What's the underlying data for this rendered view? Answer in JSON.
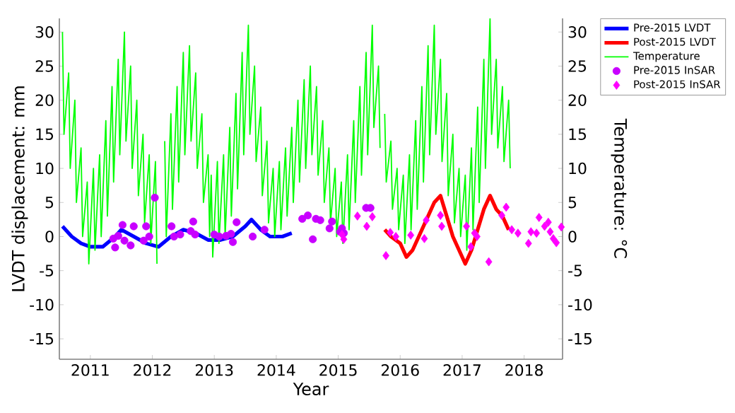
{
  "chart_data": {
    "type": "line",
    "xlabel": "Year",
    "ylabel": "LVDT displacement: mm",
    "y2label": "Temperature: °C",
    "xlim": [
      2010.5,
      2018.62
    ],
    "xticks": [
      2011,
      2012,
      2013,
      2014,
      2015,
      2016,
      2017,
      2018
    ],
    "ylim": [
      -18,
      32
    ],
    "yticks": [
      -15,
      -10,
      -5,
      0,
      5,
      10,
      15,
      20,
      25,
      30
    ],
    "y2lim": [
      -18,
      32
    ],
    "y2ticks": [
      -15,
      -10,
      -5,
      0,
      5,
      10,
      15,
      20,
      25,
      30
    ],
    "legend": "top right",
    "series": [
      {
        "name": "Pre-2015 LVDT",
        "marker": "none",
        "color": "#0000ff",
        "x": [
          2010.55,
          2010.7,
          2010.85,
          2011.0,
          2011.2,
          2011.4,
          2011.5,
          2011.7,
          2011.9,
          2012.1,
          2012.3,
          2012.5,
          2012.7,
          2012.9,
          2013.1,
          2013.3,
          2013.5,
          2013.6,
          2013.75,
          2013.9,
          2014.1,
          2014.25
        ],
        "values": [
          1.5,
          0,
          -1,
          -1.5,
          -1.5,
          0,
          1,
          0,
          -1,
          -1.5,
          0,
          1,
          0.5,
          -0.5,
          -0.5,
          0,
          1.5,
          2.5,
          1,
          0,
          0,
          0.5
        ]
      },
      {
        "name": "Post-2015 LVDT",
        "marker": "none",
        "color": "#ff0000",
        "x": [
          2015.75,
          2015.85,
          2016.0,
          2016.1,
          2016.2,
          2016.3,
          2016.45,
          2016.55,
          2016.65,
          2016.75,
          2016.85,
          2016.95,
          2017.05,
          2017.15,
          2017.25,
          2017.35,
          2017.45,
          2017.55,
          2017.65,
          2017.75
        ],
        "values": [
          1,
          0,
          -1,
          -3,
          -2,
          0,
          3,
          5,
          6,
          3,
          0,
          -2,
          -4,
          -2,
          1,
          4,
          6,
          4,
          3,
          1
        ]
      },
      {
        "name": "Temperature",
        "marker": "none",
        "axis": "y2",
        "color": "#00ff00",
        "x": [
          2010.55,
          2010.575,
          2010.65,
          2010.675,
          2010.75,
          2010.775,
          2010.85,
          2010.875,
          2010.95,
          2010.975,
          2011.05,
          2011.075,
          2011.15,
          2011.175,
          2011.25,
          2011.275,
          2011.35,
          2011.375,
          2011.45,
          2011.475,
          2011.55,
          2011.575,
          2011.65,
          2011.675,
          2011.75,
          2011.775,
          2011.85,
          2011.875,
          2011.95,
          2011.975,
          2012.05,
          2012.075,
          2012.12,
          2012.2,
          2012.225,
          2012.3,
          2012.325,
          2012.4,
          2012.425,
          2012.5,
          2012.525,
          2012.6,
          2012.625,
          2012.7,
          2012.725,
          2012.8,
          2012.825,
          2012.9,
          2012.925,
          2012.95,
          2012.975,
          2013.05,
          2013.075,
          2013.15,
          2013.175,
          2013.25,
          2013.275,
          2013.35,
          2013.375,
          2013.45,
          2013.475,
          2013.55,
          2013.575,
          2013.65,
          2013.675,
          2013.75,
          2013.775,
          2013.85,
          2013.875,
          2013.95,
          2013.975,
          2014.05,
          2014.075,
          2014.15,
          2014.175,
          2014.25,
          2014.275,
          2014.35,
          2014.375,
          2014.45,
          2014.475,
          2014.55,
          2014.575,
          2014.65,
          2014.675,
          2014.75,
          2014.775,
          2014.85,
          2014.875,
          2014.95,
          2014.975,
          2015.05,
          2015.075,
          2015.15,
          2015.175,
          2015.25,
          2015.275,
          2015.35,
          2015.375,
          2015.45,
          2015.475,
          2015.55,
          2015.575,
          2015.65,
          2015.675,
          2015.7,
          2015.75,
          2015.775,
          2015.85,
          2015.875,
          2015.95,
          2015.975,
          2016.05,
          2016.075,
          2016.15,
          2016.175,
          2016.25,
          2016.275,
          2016.35,
          2016.375,
          2016.45,
          2016.475,
          2016.55,
          2016.575,
          2016.65,
          2016.675,
          2016.75,
          2016.775,
          2016.85,
          2016.875,
          2016.95,
          2016.975,
          2017.05,
          2017.075,
          2017.15,
          2017.175,
          2017.25,
          2017.275,
          2017.35,
          2017.375,
          2017.45,
          2017.475,
          2017.55,
          2017.575,
          2017.65,
          2017.675,
          2017.75,
          2017.775
        ],
        "values": [
          30,
          15,
          24,
          10,
          20,
          5,
          13,
          0,
          8,
          -4,
          10,
          -2,
          12,
          0,
          17,
          3,
          22,
          8,
          26,
          12,
          30,
          14,
          25,
          10,
          20,
          6,
          15,
          2,
          12,
          -1,
          11,
          -4,
          null,
          14,
          0,
          18,
          4,
          22,
          8,
          27,
          12,
          28,
          14,
          24,
          10,
          18,
          5,
          12,
          0,
          9,
          -3,
          11,
          -1,
          12,
          0,
          16,
          3,
          21,
          7,
          27,
          12,
          31,
          15,
          25,
          11,
          19,
          6,
          14,
          2,
          10,
          0,
          11,
          1,
          13,
          3,
          16,
          5,
          20,
          8,
          23,
          10,
          25,
          12,
          22,
          9,
          17,
          5,
          13,
          2,
          10,
          0,
          8,
          -1,
          12,
          1,
          17,
          5,
          22,
          9,
          27,
          12,
          31,
          16,
          25,
          13,
          null,
          18,
          8,
          14,
          4,
          10,
          1,
          9,
          -1,
          12,
          1,
          17,
          4,
          22,
          8,
          28,
          12,
          31,
          15,
          26,
          11,
          21,
          6,
          15,
          2,
          10,
          0,
          9,
          -2,
          13,
          1,
          19,
          5,
          26,
          10,
          32,
          15,
          26,
          13,
          22,
          11,
          20,
          10
        ]
      },
      {
        "name": "Pre-2015 InSAR",
        "type": "scatter",
        "marker": "circle",
        "color": "#c800ff",
        "x": [
          2011.37,
          2011.45,
          2011.4,
          2011.52,
          2011.55,
          2011.65,
          2011.7,
          2011.86,
          2011.9,
          2011.95,
          2012.04,
          2012.31,
          2012.35,
          2012.45,
          2012.62,
          2012.66,
          2012.69,
          2013.0,
          2013.08,
          2013.19,
          2013.27,
          2013.3,
          2013.36,
          2013.62,
          2013.81,
          2014.42,
          2014.51,
          2014.59,
          2014.64,
          2014.71,
          2014.86,
          2014.9,
          2015.03,
          2015.06,
          2015.09,
          2015.45,
          2015.52
        ],
        "values": [
          -0.3,
          0.1,
          -1.6,
          1.7,
          -0.6,
          -1.3,
          1.5,
          -0.6,
          1.5,
          0,
          5.7,
          1.5,
          0,
          0.3,
          0.8,
          2.2,
          0.3,
          0.3,
          0,
          0.1,
          0.4,
          -0.8,
          2.1,
          0,
          1.0,
          2.6,
          3.1,
          -0.4,
          2.6,
          2.4,
          1.2,
          2.2,
          0.7,
          1.2,
          0.5,
          4.2,
          4.2
        ]
      },
      {
        "name": "Post-2015  InSAR",
        "type": "scatter",
        "marker": "diamond",
        "color": "#ff00ff",
        "x": [
          2015.06,
          2015.09,
          2015.31,
          2015.46,
          2015.55,
          2015.77,
          2015.84,
          2015.93,
          2016.17,
          2016.39,
          2016.42,
          2016.65,
          2016.67,
          2017.07,
          2017.14,
          2017.2,
          2017.24,
          2017.43,
          2017.64,
          2017.71,
          2017.8,
          2017.9,
          2018.07,
          2018.11,
          2018.2,
          2018.24,
          2018.33,
          2018.39,
          2018.42,
          2018.47,
          2018.52,
          2018.6
        ],
        "values": [
          0.3,
          -0.4,
          3.0,
          1.5,
          2.9,
          -2.8,
          0.6,
          0,
          0.2,
          -0.3,
          2.4,
          3.1,
          1.5,
          1.5,
          -1.5,
          0.5,
          0,
          -3.7,
          3.1,
          4.3,
          1.0,
          0.5,
          -1.0,
          0.7,
          0.5,
          2.8,
          1.5,
          2.1,
          0.7,
          -0.3,
          -0.9,
          1.4
        ]
      }
    ]
  }
}
